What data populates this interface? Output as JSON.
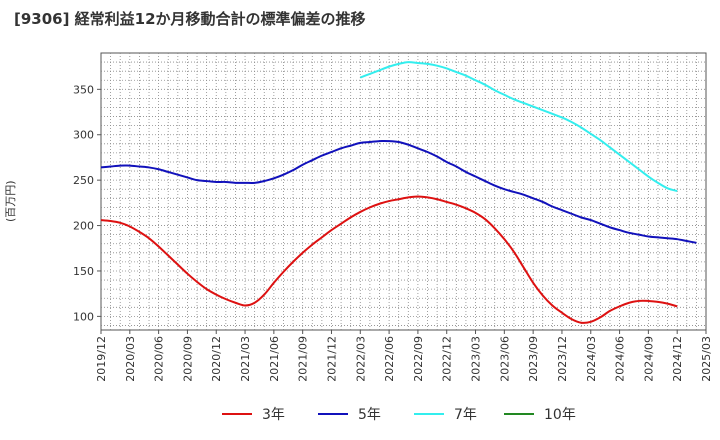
{
  "title": "[9306]  経常利益12か月移動合計の標準偏差の推移",
  "chart_data": {
    "type": "line",
    "title": "[9306]  経常利益12か月移動合計の標準偏差の推移",
    "ylabel": "(百万円)",
    "xlabel": "",
    "ylim": [
      85,
      390
    ],
    "xlim": [
      "2019/12",
      "2025/03"
    ],
    "y_ticks": [
      "100",
      "150",
      "200",
      "250",
      "300",
      "350"
    ],
    "x_ticks": [
      "2019/12",
      "2020/03",
      "2020/06",
      "2020/09",
      "2020/12",
      "2021/03",
      "2021/06",
      "2021/09",
      "2021/12",
      "2022/03",
      "2022/06",
      "2022/09",
      "2022/12",
      "2023/03",
      "2023/06",
      "2023/09",
      "2023/12",
      "2024/03",
      "2024/06",
      "2024/09",
      "2024/12",
      "2025/03"
    ],
    "grid": true,
    "legend_position": "bottom",
    "series": [
      {
        "name": "3年",
        "color": "#dd1111",
        "points": [
          [
            "2019/12",
            206
          ],
          [
            "2020/01",
            205
          ],
          [
            "2020/02",
            203
          ],
          [
            "2020/03",
            199
          ],
          [
            "2020/04",
            193
          ],
          [
            "2020/05",
            186
          ],
          [
            "2020/06",
            177
          ],
          [
            "2020/07",
            167
          ],
          [
            "2020/08",
            157
          ],
          [
            "2020/09",
            147
          ],
          [
            "2020/10",
            138
          ],
          [
            "2020/11",
            130
          ],
          [
            "2020/12",
            124
          ],
          [
            "2021/01",
            119
          ],
          [
            "2021/02",
            115
          ],
          [
            "2021/03",
            112
          ],
          [
            "2021/04",
            115
          ],
          [
            "2021/05",
            124
          ],
          [
            "2021/06",
            137
          ],
          [
            "2021/07",
            149
          ],
          [
            "2021/08",
            160
          ],
          [
            "2021/09",
            170
          ],
          [
            "2021/10",
            179
          ],
          [
            "2021/11",
            187
          ],
          [
            "2021/12",
            195
          ],
          [
            "2022/01",
            202
          ],
          [
            "2022/02",
            209
          ],
          [
            "2022/03",
            215
          ],
          [
            "2022/04",
            220
          ],
          [
            "2022/05",
            224
          ],
          [
            "2022/06",
            227
          ],
          [
            "2022/07",
            229
          ],
          [
            "2022/08",
            231
          ],
          [
            "2022/09",
            232
          ],
          [
            "2022/10",
            231
          ],
          [
            "2022/11",
            229
          ],
          [
            "2022/12",
            226
          ],
          [
            "2023/01",
            223
          ],
          [
            "2023/02",
            219
          ],
          [
            "2023/03",
            214
          ],
          [
            "2023/04",
            207
          ],
          [
            "2023/05",
            197
          ],
          [
            "2023/06",
            185
          ],
          [
            "2023/07",
            171
          ],
          [
            "2023/08",
            154
          ],
          [
            "2023/09",
            137
          ],
          [
            "2023/10",
            123
          ],
          [
            "2023/11",
            112
          ],
          [
            "2023/12",
            104
          ],
          [
            "2024/01",
            97
          ],
          [
            "2024/02",
            93
          ],
          [
            "2024/03",
            94
          ],
          [
            "2024/04",
            99
          ],
          [
            "2024/05",
            106
          ],
          [
            "2024/06",
            111
          ],
          [
            "2024/07",
            115
          ],
          [
            "2024/08",
            117
          ],
          [
            "2024/09",
            117
          ],
          [
            "2024/10",
            116
          ],
          [
            "2024/11",
            114
          ],
          [
            "2024/12",
            111
          ]
        ]
      },
      {
        "name": "5年",
        "color": "#1111bb",
        "points": [
          [
            "2019/12",
            264
          ],
          [
            "2020/01",
            265
          ],
          [
            "2020/02",
            266
          ],
          [
            "2020/03",
            266
          ],
          [
            "2020/04",
            265
          ],
          [
            "2020/05",
            264
          ],
          [
            "2020/06",
            262
          ],
          [
            "2020/07",
            259
          ],
          [
            "2020/08",
            256
          ],
          [
            "2020/09",
            253
          ],
          [
            "2020/10",
            250
          ],
          [
            "2020/11",
            249
          ],
          [
            "2020/12",
            248
          ],
          [
            "2021/01",
            248
          ],
          [
            "2021/02",
            247
          ],
          [
            "2021/03",
            247
          ],
          [
            "2021/04",
            247
          ],
          [
            "2021/05",
            249
          ],
          [
            "2021/06",
            252
          ],
          [
            "2021/07",
            256
          ],
          [
            "2021/08",
            261
          ],
          [
            "2021/09",
            267
          ],
          [
            "2021/10",
            272
          ],
          [
            "2021/11",
            277
          ],
          [
            "2021/12",
            281
          ],
          [
            "2022/01",
            285
          ],
          [
            "2022/02",
            288
          ],
          [
            "2022/03",
            291
          ],
          [
            "2022/04",
            292
          ],
          [
            "2022/05",
            293
          ],
          [
            "2022/06",
            293
          ],
          [
            "2022/07",
            292
          ],
          [
            "2022/08",
            289
          ],
          [
            "2022/09",
            285
          ],
          [
            "2022/10",
            281
          ],
          [
            "2022/11",
            276
          ],
          [
            "2022/12",
            270
          ],
          [
            "2023/01",
            265
          ],
          [
            "2023/02",
            259
          ],
          [
            "2023/03",
            254
          ],
          [
            "2023/04",
            249
          ],
          [
            "2023/05",
            244
          ],
          [
            "2023/06",
            240
          ],
          [
            "2023/07",
            237
          ],
          [
            "2023/08",
            234
          ],
          [
            "2023/09",
            230
          ],
          [
            "2023/10",
            226
          ],
          [
            "2023/11",
            221
          ],
          [
            "2023/12",
            217
          ],
          [
            "2024/01",
            213
          ],
          [
            "2024/02",
            209
          ],
          [
            "2024/03",
            206
          ],
          [
            "2024/04",
            202
          ],
          [
            "2024/05",
            198
          ],
          [
            "2024/06",
            195
          ],
          [
            "2024/07",
            192
          ],
          [
            "2024/08",
            190
          ],
          [
            "2024/09",
            188
          ],
          [
            "2024/10",
            187
          ],
          [
            "2024/11",
            186
          ],
          [
            "2024/12",
            185
          ],
          [
            "2025/01",
            183
          ],
          [
            "2025/02",
            181
          ]
        ]
      },
      {
        "name": "7年",
        "color": "#33eeee",
        "points": [
          [
            "2022/03",
            363
          ],
          [
            "2022/04",
            367
          ],
          [
            "2022/05",
            371
          ],
          [
            "2022/06",
            375
          ],
          [
            "2022/07",
            378
          ],
          [
            "2022/08",
            380
          ],
          [
            "2022/09",
            379
          ],
          [
            "2022/10",
            378
          ],
          [
            "2022/11",
            376
          ],
          [
            "2022/12",
            373
          ],
          [
            "2023/01",
            369
          ],
          [
            "2023/02",
            365
          ],
          [
            "2023/03",
            360
          ],
          [
            "2023/04",
            355
          ],
          [
            "2023/05",
            349
          ],
          [
            "2023/06",
            344
          ],
          [
            "2023/07",
            339
          ],
          [
            "2023/08",
            335
          ],
          [
            "2023/09",
            331
          ],
          [
            "2023/10",
            327
          ],
          [
            "2023/11",
            323
          ],
          [
            "2023/12",
            319
          ],
          [
            "2024/01",
            314
          ],
          [
            "2024/02",
            308
          ],
          [
            "2024/03",
            301
          ],
          [
            "2024/04",
            294
          ],
          [
            "2024/05",
            286
          ],
          [
            "2024/06",
            278
          ],
          [
            "2024/07",
            270
          ],
          [
            "2024/08",
            262
          ],
          [
            "2024/09",
            254
          ],
          [
            "2024/10",
            247
          ],
          [
            "2024/11",
            241
          ],
          [
            "2024/12",
            238
          ]
        ]
      },
      {
        "name": "10年",
        "color": "#228822",
        "points": []
      }
    ]
  }
}
